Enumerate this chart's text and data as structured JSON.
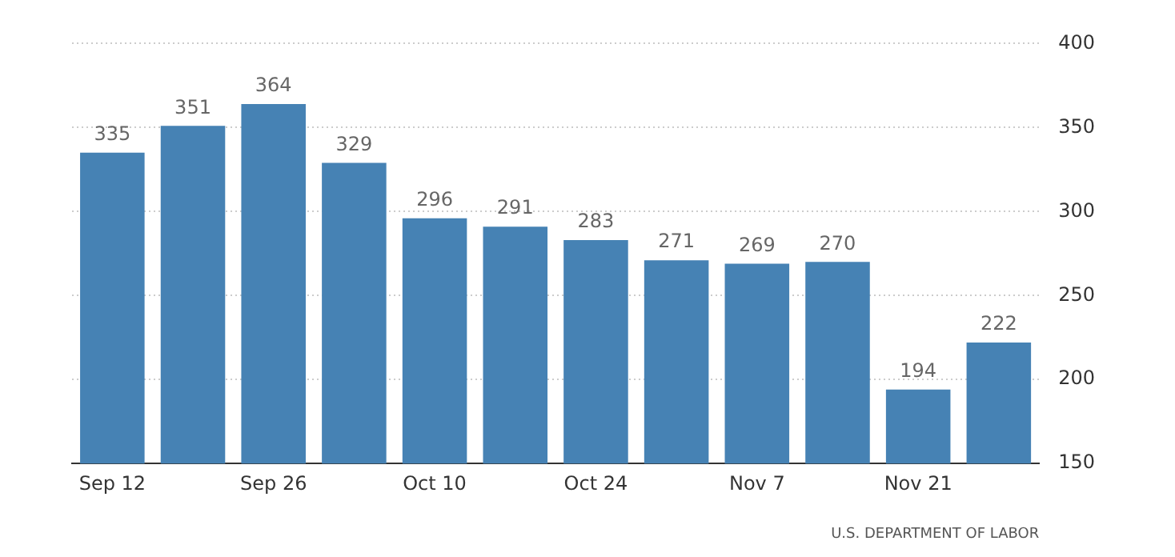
{
  "chart_data": {
    "type": "bar",
    "categories": [
      "Sep 12",
      null,
      "Sep 26",
      null,
      "Oct 10",
      null,
      "Oct 24",
      null,
      "Nov 7",
      null,
      "Nov 21",
      null
    ],
    "values": [
      335,
      351,
      364,
      329,
      296,
      291,
      283,
      271,
      269,
      270,
      194,
      222
    ],
    "color": "#4682b4",
    "ylim": [
      150,
      400
    ],
    "yticks": [
      150,
      200,
      250,
      300,
      350,
      400
    ],
    "grid": "y",
    "data_labels": true,
    "legend": false,
    "annotations": [
      "U.S. DEPARTMENT OF LABOR"
    ]
  }
}
